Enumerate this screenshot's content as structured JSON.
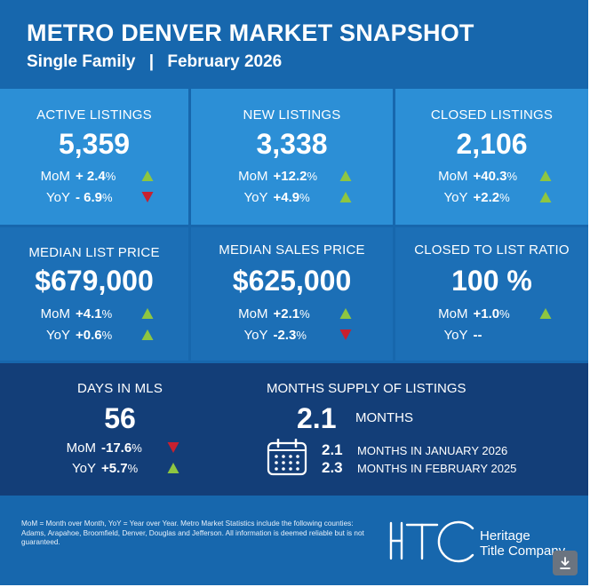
{
  "header": {
    "title": "METRO DENVER MARKET SNAPSHOT",
    "subtitle_left": "Single Family",
    "subtitle_sep": "|",
    "subtitle_right": "February 2026"
  },
  "tiles": {
    "active": {
      "label": "ACTIVE LISTINGS",
      "value": "5,359",
      "mom_k": "MoM",
      "mom_v": "+ 2.4",
      "mom_pct": "%",
      "mom_dir": "up",
      "yoy_k": "YoY",
      "yoy_v": "- 6.9",
      "yoy_pct": "%",
      "yoy_dir": "down"
    },
    "new": {
      "label": "NEW LISTINGS",
      "value": "3,338",
      "mom_k": "MoM",
      "mom_v": "+12.2",
      "mom_pct": "%",
      "mom_dir": "up",
      "yoy_k": "YoY",
      "yoy_v": "+4.9",
      "yoy_pct": "%",
      "yoy_dir": "up"
    },
    "closed": {
      "label": "CLOSED LISTINGS",
      "value": "2,106",
      "mom_k": "MoM",
      "mom_v": "+40.3",
      "mom_pct": "%",
      "mom_dir": "up",
      "yoy_k": "YoY",
      "yoy_v": "+2.2",
      "yoy_pct": "%",
      "yoy_dir": "up"
    },
    "list_price": {
      "label": "MEDIAN LIST PRICE",
      "value": "$679,000",
      "mom_k": "MoM",
      "mom_v": "+4.1",
      "mom_pct": "%",
      "mom_dir": "up",
      "yoy_k": "YoY",
      "yoy_v": "+0.6",
      "yoy_pct": "%",
      "yoy_dir": "up"
    },
    "sales_price": {
      "label": "MEDIAN SALES PRICE",
      "value": "$625,000",
      "mom_k": "MoM",
      "mom_v": "+2.1",
      "mom_pct": "%",
      "mom_dir": "up",
      "yoy_k": "YoY",
      "yoy_v": "-2.3",
      "yoy_pct": "%",
      "yoy_dir": "down"
    },
    "ratio": {
      "label": "CLOSED TO LIST RATIO",
      "value": "100 %",
      "mom_k": "MoM",
      "mom_v": "+1.0",
      "mom_pct": "%",
      "mom_dir": "up",
      "yoy_k": "YoY",
      "yoy_v": "--"
    },
    "dim": {
      "label": "DAYS IN MLS",
      "value": "56",
      "mom_k": "MoM",
      "mom_v": "-17.6",
      "mom_pct": "%",
      "mom_dir": "down",
      "yoy_k": "YoY",
      "yoy_v": "+5.7",
      "yoy_pct": "%",
      "yoy_dir": "up"
    }
  },
  "supply": {
    "label": "MONTHS SUPPLY OF LISTINGS",
    "value": "2.1",
    "unit": "MONTHS",
    "rows": [
      {
        "value": "2.1",
        "text": "MONTHS IN JANUARY 2026"
      },
      {
        "value": "2.3",
        "text": "MONTHS IN FEBRUARY 2025"
      }
    ],
    "icon": "calendar-icon"
  },
  "footer": {
    "disclaimer": "MoM = Month over Month, YoY = Year over Year. Metro Market Statistics include the following counties: Adams, Arapahoe, Broomfield, Denver, Douglas and Jefferson. All information is deemed reliable but is not guaranteed.",
    "logo_line1": "Heritage",
    "logo_line2": "Title Company",
    "logo_icon": "htc-logo-icon",
    "download_icon": "download-icon"
  },
  "colors": {
    "background": "#1767ad",
    "tile_light": "#2c8fd6",
    "tile_mid": "#1c6fb6",
    "tile_dark": "#133e78",
    "up": "#8ec641",
    "down": "#c8202f"
  }
}
